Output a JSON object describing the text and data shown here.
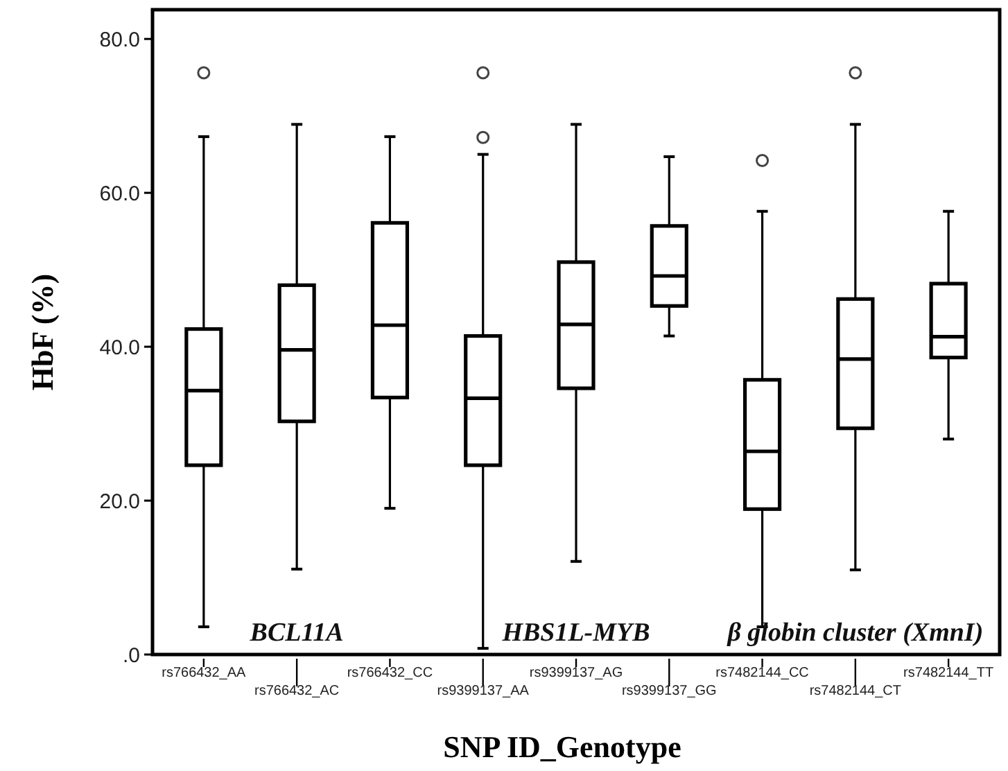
{
  "chart_data": {
    "type": "box",
    "ylabel": "HbF (%)",
    "xlabel": "SNP ID_Genotype",
    "categories": [
      "rs766432_AA",
      "rs766432_AC",
      "rs766432_CC",
      "rs9399137_AA",
      "rs9399137_AG",
      "rs9399137_GG",
      "rs7482144_CC",
      "rs7482144_CT",
      "rs7482144_TT"
    ],
    "boxes": [
      {
        "low": 3.6,
        "q1": 24.6,
        "median": 34.3,
        "q3": 42.3,
        "high": 67.3,
        "outliers": [
          75.6
        ]
      },
      {
        "low": 11.1,
        "q1": 30.3,
        "median": 39.6,
        "q3": 48.0,
        "high": 68.9
      },
      {
        "low": 19.0,
        "q1": 33.4,
        "median": 42.8,
        "q3": 56.1,
        "high": 67.3
      },
      {
        "low": 0.8,
        "q1": 24.6,
        "median": 33.3,
        "q3": 41.4,
        "high": 65.0,
        "outliers": [
          67.2,
          75.6
        ]
      },
      {
        "low": 12.1,
        "q1": 34.6,
        "median": 42.9,
        "q3": 51.0,
        "high": 68.9
      },
      {
        "low": 41.4,
        "q1": 45.3,
        "median": 49.2,
        "q3": 55.7,
        "high": 64.7
      },
      {
        "low": 3.6,
        "q1": 18.9,
        "median": 26.4,
        "q3": 35.7,
        "high": 57.6,
        "outliers": [
          64.2
        ]
      },
      {
        "low": 11.0,
        "q1": 29.4,
        "median": 38.4,
        "q3": 46.2,
        "high": 68.9,
        "outliers": [
          75.6
        ]
      },
      {
        "low": 28.0,
        "q1": 38.6,
        "median": 41.3,
        "q3": 48.2,
        "high": 57.6
      }
    ],
    "ylim": [
      0,
      83.8
    ],
    "yticks": [
      {
        "value": 0,
        "label": ".0"
      },
      {
        "value": 20,
        "label": "20.0"
      },
      {
        "value": 40,
        "label": "40.0"
      },
      {
        "value": 60,
        "label": "60.0"
      },
      {
        "value": 80,
        "label": "80.0"
      }
    ],
    "annotations": [
      "BCL11A",
      "HBS1L-MYB",
      "β globin cluster (XmnI)"
    ],
    "grid": false
  }
}
